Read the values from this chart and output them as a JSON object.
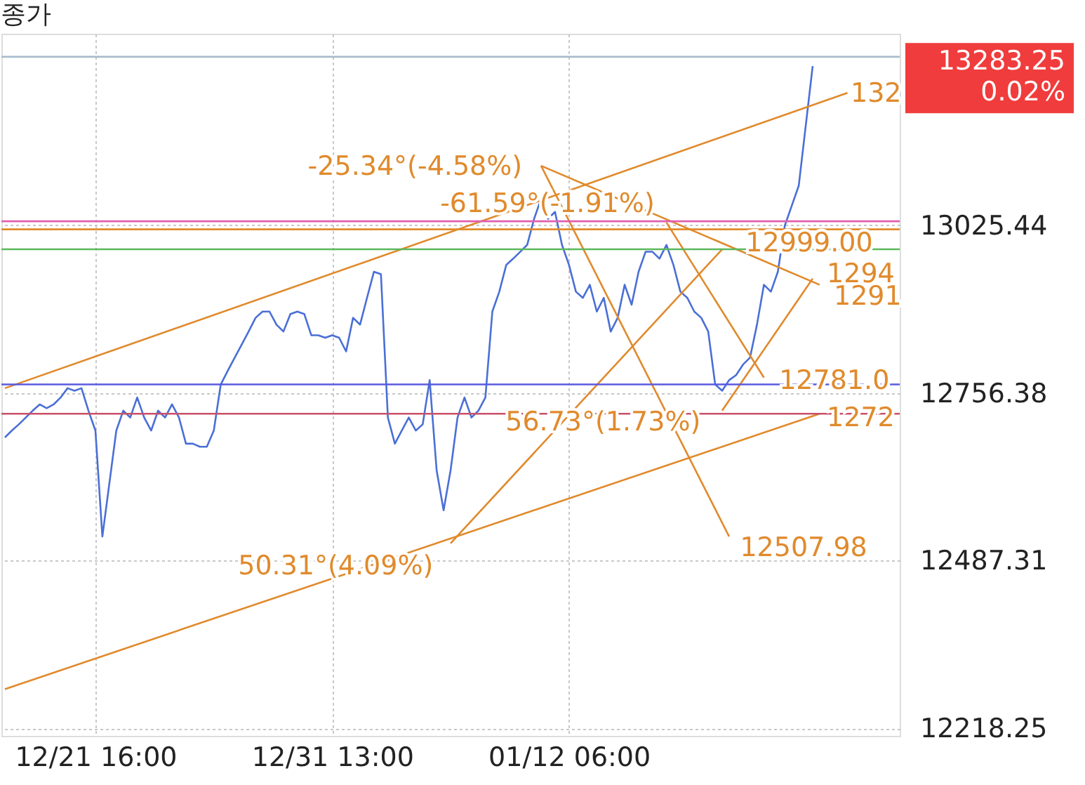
{
  "chart_data": {
    "type": "line",
    "title": "종가",
    "categories": [
      null,
      null,
      null,
      null,
      null,
      null,
      null,
      null,
      null,
      null,
      null,
      null,
      null,
      "12/21 16:00",
      null,
      null,
      null,
      null,
      null,
      null,
      null,
      null,
      null,
      null,
      null,
      null,
      null,
      null,
      null,
      null,
      null,
      null,
      null,
      null,
      null,
      null,
      null,
      null,
      null,
      null,
      null,
      null,
      null,
      null,
      null,
      null,
      null,
      "12/31 13:00",
      null,
      null,
      null,
      null,
      null,
      null,
      null,
      null,
      null,
      null,
      null,
      null,
      null,
      null,
      null,
      null,
      null,
      null,
      null,
      null,
      null,
      null,
      null,
      null,
      null,
      null,
      null,
      null,
      null,
      null,
      null,
      null,
      null,
      "01/12 06:00",
      null,
      null,
      null,
      null,
      null,
      null,
      null,
      null,
      null,
      null,
      null,
      null,
      null,
      null,
      null,
      null,
      null,
      null,
      null,
      null,
      null,
      null,
      null,
      null,
      null,
      null,
      null,
      null,
      null,
      null,
      null,
      null,
      null,
      null,
      null,
      null,
      null,
      null,
      null,
      null,
      null,
      null,
      null,
      null,
      null,
      null,
      null
    ],
    "ylim": [
      12206,
      13333
    ],
    "yticks": [
      12218.25,
      12487.31,
      12756.38,
      13025.44
    ],
    "grid": true,
    "series": [
      {
        "color": "#4a6fd6",
        "values": [
          12685,
          12696,
          12706,
          12717,
          12728,
          12738,
          12732,
          12738,
          12749,
          12764,
          12760,
          12764,
          12728,
          12696,
          12526,
          12611,
          12696,
          12728,
          12717,
          12749,
          12717,
          12696,
          12728,
          12717,
          12738,
          12717,
          12675,
          12675,
          12670,
          12670,
          12696,
          12770,
          12792,
          12813,
          12834,
          12855,
          12877,
          12887,
          12887,
          12866,
          12855,
          12883,
          12887,
          12883,
          12849,
          12849,
          12845,
          12849,
          12845,
          12823,
          12877,
          12866,
          12909,
          12951,
          12947,
          12717,
          12675,
          12696,
          12717,
          12696,
          12706,
          12777,
          12632,
          12568,
          12632,
          12717,
          12749,
          12717,
          12728,
          12749,
          12887,
          12919,
          12962,
          12972,
          12983,
          12994,
          13036,
          13068,
          13036,
          13047,
          12994,
          12962,
          12919,
          12909,
          12930,
          12887,
          12909,
          12855,
          12877,
          12930,
          12898,
          12951,
          12983,
          12983,
          12972,
          12994,
          12962,
          12919,
          12909,
          12887,
          12877,
          12855,
          12770,
          12760,
          12777,
          12785,
          12802,
          12813,
          12866,
          12930,
          12919,
          12951,
          13025,
          13057,
          13089,
          13185,
          13281,
          null,
          null,
          null,
          null,
          null,
          null,
          null,
          null,
          null,
          null,
          null,
          null
        ]
      },
      {
        "type": "line",
        "color": "#e08a2c",
        "values": [
          12764,
          null,
          null,
          null,
          null,
          null,
          null,
          null,
          null,
          null,
          null,
          null,
          null,
          null,
          null,
          null,
          null,
          null,
          null,
          null,
          null,
          null,
          null,
          null,
          null,
          null,
          null,
          null,
          null,
          null,
          null,
          null,
          null,
          null,
          null,
          null,
          null,
          null,
          null,
          null,
          null,
          null,
          null,
          null,
          null,
          null,
          null,
          null,
          null,
          null,
          null,
          null,
          null,
          null,
          null,
          null,
          null,
          null,
          null,
          null,
          null,
          null,
          null,
          null,
          null,
          null,
          null,
          null,
          null,
          null,
          null,
          null,
          null,
          null,
          null,
          null,
          null,
          null,
          null,
          null,
          null,
          null,
          null,
          null,
          null,
          null,
          null,
          null,
          null,
          null,
          null,
          null,
          null,
          null,
          null,
          null,
          null,
          null,
          null,
          null,
          null,
          null,
          null,
          null,
          null,
          null,
          null,
          null,
          null,
          null,
          null,
          null,
          null,
          null,
          null,
          null,
          null,
          null,
          null,
          null,
          null,
          13238,
          null,
          null,
          null,
          null,
          null,
          null,
          null
        ]
      },
      {
        "type": "line",
        "color": "#e08a2c",
        "values": [
          12281,
          null,
          null,
          null,
          null,
          null,
          null,
          null,
          null,
          null,
          null,
          null,
          null,
          null,
          null,
          null,
          null,
          null,
          null,
          null,
          null,
          null,
          null,
          null,
          null,
          null,
          null,
          null,
          null,
          null,
          null,
          null,
          null,
          null,
          null,
          null,
          null,
          null,
          null,
          null,
          null,
          null,
          null,
          null,
          null,
          null,
          null,
          null,
          null,
          null,
          null,
          null,
          null,
          null,
          null,
          null,
          null,
          null,
          null,
          null,
          null,
          null,
          null,
          null,
          null,
          null,
          null,
          null,
          null,
          null,
          null,
          null,
          null,
          null,
          null,
          null,
          null,
          null,
          null,
          null,
          null,
          null,
          null,
          null,
          null,
          null,
          null,
          null,
          null,
          null,
          null,
          null,
          null,
          null,
          null,
          null,
          null,
          null,
          null,
          null,
          null,
          null,
          null,
          null,
          null,
          null,
          null,
          null,
          null,
          null,
          null,
          null,
          null,
          null,
          null,
          null,
          null,
          12723,
          null,
          null,
          null,
          null,
          null,
          null,
          null,
          null,
          null,
          null,
          null
        ]
      },
      {
        "type": "line",
        "color": "#e08a2c",
        "values": [
          null,
          null,
          null,
          null,
          null,
          null,
          null,
          null,
          null,
          null,
          null,
          null,
          null,
          null,
          null,
          null,
          null,
          null,
          null,
          null,
          null,
          null,
          null,
          null,
          null,
          null,
          null,
          null,
          null,
          null,
          null,
          null,
          null,
          null,
          null,
          null,
          null,
          null,
          null,
          null,
          null,
          null,
          null,
          null,
          null,
          null,
          null,
          null,
          null,
          null,
          null,
          null,
          null,
          null,
          null,
          null,
          null,
          null,
          null,
          null,
          null,
          null,
          null,
          null,
          null,
          null,
          null,
          null,
          null,
          null,
          null,
          null,
          null,
          null,
          null,
          null,
          null,
          13121,
          null,
          null,
          null,
          null,
          null,
          null,
          null,
          null,
          null,
          null,
          null,
          null,
          null,
          null,
          null,
          null,
          null,
          null,
          null,
          null,
          null,
          null,
          null,
          null,
          null,
          null,
          12526,
          null,
          null,
          null,
          null,
          null,
          null,
          null,
          null,
          null,
          null,
          null,
          null,
          null,
          null,
          null,
          null,
          null,
          null,
          null,
          null,
          null,
          null,
          null,
          null
        ]
      },
      {
        "type": "line",
        "color": "#e08a2c",
        "values": [
          null,
          null,
          null,
          null,
          null,
          null,
          null,
          null,
          null,
          null,
          null,
          null,
          null,
          null,
          null,
          null,
          null,
          null,
          null,
          null,
          null,
          null,
          null,
          null,
          null,
          null,
          null,
          null,
          null,
          null,
          null,
          null,
          null,
          null,
          null,
          null,
          null,
          null,
          null,
          null,
          null,
          null,
          null,
          null,
          null,
          null,
          null,
          null,
          null,
          null,
          null,
          null,
          null,
          null,
          null,
          null,
          null,
          null,
          null,
          null,
          null,
          null,
          null,
          null,
          null,
          null,
          null,
          null,
          null,
          null,
          null,
          null,
          null,
          null,
          null,
          null,
          null,
          13121,
          null,
          null,
          null,
          null,
          null,
          null,
          null,
          null,
          null,
          null,
          null,
          null,
          null,
          null,
          null,
          null,
          null,
          null,
          null,
          null,
          null,
          null,
          null,
          null,
          null,
          null,
          null,
          null,
          null,
          null,
          null,
          null,
          null,
          null,
          null,
          null,
          null,
          null,
          null,
          12930,
          null,
          null,
          null,
          null,
          null,
          null,
          null,
          null,
          null,
          null,
          null
        ]
      },
      {
        "type": "line",
        "color": "#e08a2c",
        "values": [
          null,
          null,
          null,
          null,
          null,
          null,
          null,
          null,
          null,
          null,
          null,
          null,
          null,
          null,
          null,
          null,
          null,
          null,
          null,
          null,
          null,
          null,
          null,
          null,
          null,
          null,
          null,
          null,
          null,
          null,
          null,
          null,
          null,
          null,
          null,
          null,
          null,
          null,
          null,
          null,
          null,
          null,
          null,
          null,
          null,
          null,
          null,
          null,
          null,
          null,
          null,
          null,
          null,
          null,
          null,
          null,
          null,
          null,
          null,
          null,
          null,
          null,
          null,
          null,
          null,
          null,
          null,
          null,
          null,
          null,
          null,
          null,
          null,
          null,
          null,
          null,
          null,
          null,
          null,
          null,
          null,
          null,
          null,
          null,
          null,
          null,
          null,
          null,
          null,
          null,
          null,
          null,
          null,
          null,
          null,
          13030,
          null,
          null,
          null,
          null,
          null,
          null,
          null,
          null,
          null,
          null,
          null,
          null,
          null,
          12781,
          null,
          null,
          null,
          null,
          null,
          null,
          null,
          null,
          null,
          null,
          null,
          null,
          null,
          null,
          null,
          null,
          null,
          null,
          null
        ]
      },
      {
        "type": "line",
        "color": "#e08a2c",
        "values": [
          null,
          null,
          null,
          null,
          null,
          null,
          null,
          null,
          null,
          null,
          null,
          null,
          null,
          null,
          null,
          null,
          null,
          null,
          null,
          null,
          null,
          null,
          null,
          null,
          null,
          null,
          null,
          null,
          null,
          null,
          null,
          null,
          null,
          null,
          null,
          null,
          null,
          null,
          null,
          null,
          null,
          null,
          null,
          null,
          null,
          null,
          null,
          null,
          null,
          null,
          null,
          null,
          null,
          null,
          null,
          null,
          null,
          null,
          null,
          null,
          null,
          null,
          null,
          null,
          12515,
          null,
          null,
          null,
          null,
          null,
          null,
          null,
          null,
          null,
          null,
          null,
          null,
          null,
          null,
          null,
          null,
          null,
          null,
          null,
          null,
          null,
          null,
          null,
          null,
          null,
          null,
          null,
          null,
          null,
          null,
          null,
          null,
          null,
          null,
          null,
          null,
          null,
          null,
          12987,
          null,
          null,
          null,
          null,
          null,
          null,
          null,
          null,
          null,
          null,
          null,
          null,
          null,
          null,
          null,
          null,
          null,
          null,
          null,
          null,
          null,
          null,
          null,
          null,
          null
        ]
      },
      {
        "type": "line",
        "color": "#e08a2c",
        "values": [
          null,
          null,
          null,
          null,
          null,
          null,
          null,
          null,
          null,
          null,
          null,
          null,
          null,
          null,
          null,
          null,
          null,
          null,
          null,
          null,
          null,
          null,
          null,
          null,
          null,
          null,
          null,
          null,
          null,
          null,
          null,
          null,
          null,
          null,
          null,
          null,
          null,
          null,
          null,
          null,
          null,
          null,
          null,
          null,
          null,
          null,
          null,
          null,
          null,
          null,
          null,
          null,
          null,
          null,
          null,
          null,
          null,
          null,
          null,
          null,
          null,
          null,
          null,
          null,
          null,
          null,
          null,
          null,
          null,
          null,
          null,
          null,
          null,
          null,
          null,
          null,
          null,
          null,
          null,
          null,
          null,
          null,
          null,
          null,
          null,
          null,
          null,
          null,
          null,
          null,
          null,
          null,
          null,
          null,
          null,
          null,
          null,
          null,
          null,
          null,
          null,
          null,
          null,
          12728,
          null,
          null,
          null,
          null,
          null,
          null,
          null,
          null,
          null,
          null,
          null,
          null,
          12940,
          null,
          null,
          null,
          null,
          null,
          null,
          null,
          null,
          null,
          null,
          null,
          null
        ]
      }
    ],
    "ref_lines": [
      {
        "axis": "y",
        "value": 13296,
        "color": "#a9bccc"
      },
      {
        "axis": "y",
        "value": 13032,
        "color": "#e05fb0"
      },
      {
        "axis": "y",
        "value": 13019,
        "color": "#e08a2c"
      },
      {
        "axis": "y",
        "value": 12987,
        "color": "#5cb85c"
      },
      {
        "axis": "y",
        "value": 12770,
        "color": "#5a5ae0"
      },
      {
        "axis": "y",
        "value": 12723,
        "color": "#c8506a"
      }
    ],
    "annotations": [
      "-25.34°(-4.58%)",
      "-61.59°(-1.91%)",
      "56.73°(1.73%)",
      "50.31°(4.09%)",
      "12999.00",
      "12507.98",
      "12781.0",
      "1294",
      "1291",
      "1272",
      "132",
      "13283.25 0.02%"
    ]
  }
}
